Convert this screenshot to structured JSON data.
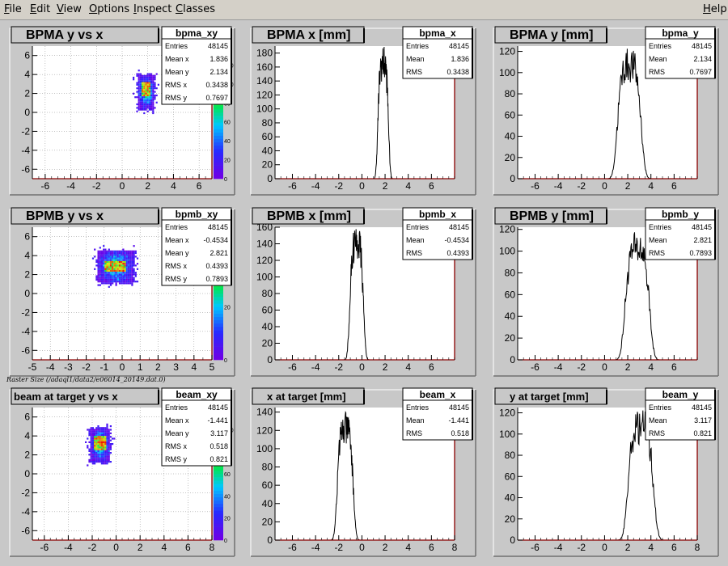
{
  "menu": {
    "file": {
      "ul": "F",
      "rest": "ile"
    },
    "edit": {
      "ul": "E",
      "rest": "dit"
    },
    "view": {
      "ul": "V",
      "rest": "iew"
    },
    "options": {
      "ul": "O",
      "rest": "ptions"
    },
    "inspect": {
      "ul": "I",
      "rest": "nspect"
    },
    "classes": {
      "ul": "C",
      "rest": "lasses"
    },
    "help": {
      "ul": "H",
      "rest": "elp"
    }
  },
  "canvas_note": "Raster Size (/adaql1/data2/e06014_20149.dat.0)",
  "colors": {
    "axis": "#8b0000",
    "grid": "#888888",
    "frame_bg": "#c8c8c8",
    "pad_bg": "#ffffff",
    "hist_line": "#000000"
  },
  "chart_data": [
    {
      "type": "heatmap",
      "title": "BPMA y vs x",
      "stats_name": "bpma_xy",
      "stats": [
        [
          "Entries",
          "48145"
        ],
        [
          "Mean x",
          "1.836"
        ],
        [
          "Mean y",
          "2.134"
        ],
        [
          "RMS x",
          "0.3438"
        ],
        [
          "RMS y",
          "0.7697"
        ]
      ],
      "xlim": [
        -7,
        7
      ],
      "ylim": [
        -7,
        7
      ],
      "xticks": [
        "-6",
        "-4",
        "-2",
        "0",
        "2",
        "4",
        "6"
      ],
      "yticks": [
        "-6",
        "-4",
        "-2",
        "0",
        "2",
        "4",
        "6"
      ],
      "blob": {
        "x_range": [
          1.2,
          2.4
        ],
        "y_range": [
          0.5,
          4.0
        ],
        "hot_x": [
          1.5,
          2.2
        ],
        "hot_y": [
          1.8,
          3.2
        ]
      },
      "palette_ticks": [
        "0",
        "20",
        "40",
        "60",
        "80",
        "100",
        "120"
      ],
      "palette_max": 140,
      "grid": true
    },
    {
      "type": "histogram",
      "title": "BPMA x [mm]",
      "stats_name": "bpma_x",
      "stats": [
        [
          "Entries",
          "48145"
        ],
        [
          "Mean",
          "1.836"
        ],
        [
          "RMS",
          "0.3438"
        ]
      ],
      "xlim": [
        -7.5,
        8
      ],
      "ylim": [
        0,
        190
      ],
      "xticks": [
        "-6",
        "-4",
        "-2",
        "0",
        "2",
        "4",
        "6"
      ],
      "yticks": [
        "0",
        "20",
        "40",
        "60",
        "80",
        "100",
        "120",
        "140",
        "160",
        "180"
      ],
      "mean": 1.836,
      "rms": 0.3438,
      "peak": 170
    },
    {
      "type": "histogram",
      "title": "BPMA y [mm]",
      "stats_name": "bpma_y",
      "stats": [
        [
          "Entries",
          "48145"
        ],
        [
          "Mean",
          "2.134"
        ],
        [
          "RMS",
          "0.7697"
        ]
      ],
      "xlim": [
        -7.5,
        8
      ],
      "ylim": [
        0,
        125
      ],
      "xticks": [
        "-6",
        "-4",
        "-2",
        "0",
        "2",
        "4",
        "6"
      ],
      "yticks": [
        "0",
        "20",
        "40",
        "60",
        "80",
        "100",
        "120"
      ],
      "mean": 2.134,
      "rms": 0.7697,
      "peak": 110
    },
    {
      "type": "heatmap",
      "title": "BPMB y vs x",
      "stats_name": "bpmb_xy",
      "stats": [
        [
          "Entries",
          "48145"
        ],
        [
          "Mean x",
          "-0.4534"
        ],
        [
          "Mean y",
          "2.821"
        ],
        [
          "RMS x",
          "0.4393"
        ],
        [
          "RMS y",
          "0.7893"
        ]
      ],
      "xlim": [
        -5,
        5
      ],
      "ylim": [
        -7,
        7
      ],
      "xticks": [
        "-5",
        "-4",
        "-3",
        "-2",
        "-1",
        "0",
        "1",
        "2",
        "3",
        "4",
        "5"
      ],
      "yticks": [
        "-6",
        "-4",
        "-2",
        "0",
        "2",
        "4",
        "6"
      ],
      "blob": {
        "x_range": [
          -1.4,
          0.6
        ],
        "y_range": [
          1.2,
          4.6
        ],
        "hot_x": [
          -1.0,
          0.2
        ],
        "hot_y": [
          2.3,
          3.6
        ]
      },
      "palette_ticks": [
        "0",
        "20",
        "40"
      ],
      "palette_max": 50,
      "grid": true
    },
    {
      "type": "histogram",
      "title": "BPMB x [mm]",
      "stats_name": "bpmb_x",
      "stats": [
        [
          "Entries",
          "48145"
        ],
        [
          "Mean",
          "-0.4534"
        ],
        [
          "RMS",
          "0.4393"
        ]
      ],
      "xlim": [
        -7.5,
        8
      ],
      "ylim": [
        0,
        160
      ],
      "xticks": [
        "-6",
        "-4",
        "-2",
        "0",
        "2",
        "4",
        "6"
      ],
      "yticks": [
        "0",
        "20",
        "40",
        "60",
        "80",
        "100",
        "120",
        "140",
        "160"
      ],
      "mean": -0.4534,
      "rms": 0.4393,
      "peak": 145
    },
    {
      "type": "histogram",
      "title": "BPMB y [mm]",
      "stats_name": "bpmb_y",
      "stats": [
        [
          "Entries",
          "48145"
        ],
        [
          "Mean",
          "2.821"
        ],
        [
          "RMS",
          "0.7893"
        ]
      ],
      "xlim": [
        -7.5,
        8
      ],
      "ylim": [
        0,
        122
      ],
      "xticks": [
        "-6",
        "-4",
        "-2",
        "0",
        "2",
        "4",
        "6"
      ],
      "yticks": [
        "0",
        "20",
        "40",
        "60",
        "80",
        "100",
        "120"
      ],
      "mean": 2.821,
      "rms": 0.7893,
      "peak": 105
    },
    {
      "type": "heatmap",
      "title": "beam at target y vs x",
      "stats_name": "beam_xy",
      "stats": [
        [
          "Entries",
          "48145"
        ],
        [
          "Mean x",
          "-1.441"
        ],
        [
          "Mean y",
          "3.117"
        ],
        [
          "RMS x",
          "0.518"
        ],
        [
          "RMS y",
          "0.821"
        ]
      ],
      "xlim": [
        -7,
        8
      ],
      "ylim": [
        -7,
        7
      ],
      "xticks": [
        "-6",
        "-4",
        "-2",
        "0",
        "2",
        "4",
        "6",
        "8"
      ],
      "yticks": [
        "-6",
        "-4",
        "-2",
        "0",
        "2",
        "4",
        "6"
      ],
      "blob": {
        "x_range": [
          -2.2,
          -0.6
        ],
        "y_range": [
          1.4,
          4.8
        ],
        "hot_x": [
          -1.9,
          -0.9
        ],
        "hot_y": [
          2.6,
          4.0
        ]
      },
      "palette_ticks": [
        "0",
        "20",
        "40",
        "60",
        "80",
        "100"
      ],
      "palette_max": 120,
      "grid": true
    },
    {
      "type": "histogram",
      "title": "x at target [mm]",
      "stats_name": "beam_x",
      "stats": [
        [
          "Entries",
          "48145"
        ],
        [
          "Mean",
          "-1.441"
        ],
        [
          "RMS",
          "0.518"
        ]
      ],
      "xlim": [
        -7.5,
        8
      ],
      "ylim": [
        0,
        145
      ],
      "xticks": [
        "-6",
        "-4",
        "-2",
        "0",
        "2",
        "4",
        "6",
        "8"
      ],
      "yticks": [
        "0",
        "20",
        "40",
        "60",
        "80",
        "100",
        "120",
        "140"
      ],
      "mean": -1.441,
      "rms": 0.518,
      "peak": 125
    },
    {
      "type": "histogram",
      "title": "y at target [mm]",
      "stats_name": "beam_y",
      "stats": [
        [
          "Entries",
          "48145"
        ],
        [
          "Mean",
          "3.117"
        ],
        [
          "RMS",
          "0.821"
        ]
      ],
      "xlim": [
        -7.5,
        8
      ],
      "ylim": [
        0,
        125
      ],
      "xticks": [
        "-6",
        "-4",
        "-2",
        "0",
        "2",
        "4",
        "6",
        "8"
      ],
      "yticks": [
        "0",
        "20",
        "40",
        "60",
        "80",
        "100",
        "120"
      ],
      "mean": 3.117,
      "rms": 0.821,
      "peak": 110
    }
  ]
}
